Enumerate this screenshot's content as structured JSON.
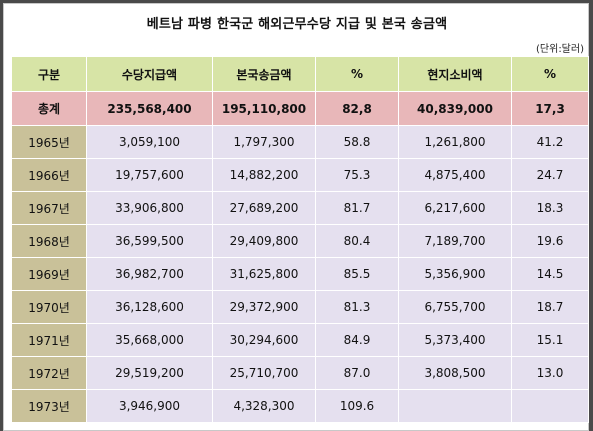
{
  "title": "베트남 파병 한국군 해외근무수당 지급 및 본국 송금액",
  "unit": "(단위:달러)",
  "table": {
    "headers": [
      "구분",
      "수당지급액",
      "본국송금액",
      "%",
      "현지소비액",
      "%"
    ],
    "total": [
      "총계",
      "235,568,400",
      "195,110,800",
      "82,8",
      "40,839,000",
      "17,3"
    ],
    "rows": [
      [
        "1965년",
        "3,059,100",
        "1,797,300",
        "58.8",
        "1,261,800",
        "41.2"
      ],
      [
        "1966년",
        "19,757,600",
        "14,882,200",
        "75.3",
        "4,875,400",
        "24.7"
      ],
      [
        "1967년",
        "33,906,800",
        "27,689,200",
        "81.7",
        "6,217,600",
        "18.3"
      ],
      [
        "1968년",
        "36,599,500",
        "29,409,800",
        "80.4",
        "7,189,700",
        "19.6"
      ],
      [
        "1969년",
        "36,982,700",
        "31,625,800",
        "85.5",
        "5,356,900",
        "14.5"
      ],
      [
        "1970년",
        "36,128,600",
        "29,372,900",
        "81.3",
        "6,755,700",
        "18.7"
      ],
      [
        "1971년",
        "35,668,000",
        "30,294,600",
        "84.9",
        "5,373,400",
        "15.1"
      ],
      [
        "1972년",
        "29,519,200",
        "25,710,700",
        "87.0",
        "3,808,500",
        "13.0"
      ],
      [
        "1973년",
        "3,946,900",
        "4,328,300",
        "109.6",
        "",
        ""
      ]
    ]
  },
  "colors": {
    "header_bg": "#d7e4a6",
    "total_bg": "#e8b7b9",
    "year_bg": "#c9c199",
    "cell_bg": "#e5e0ef"
  }
}
